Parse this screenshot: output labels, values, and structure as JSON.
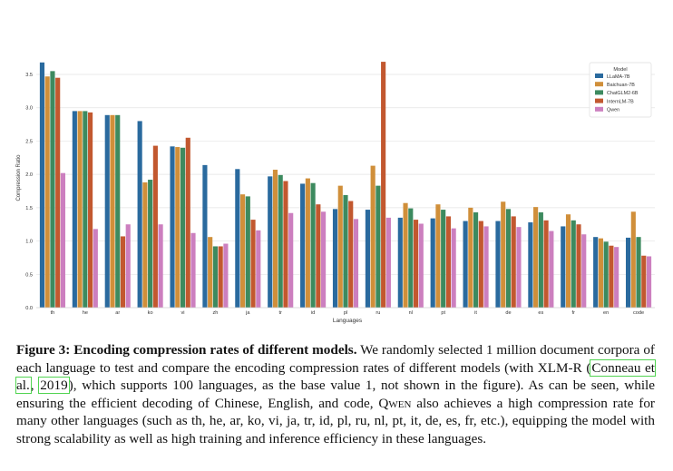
{
  "chart_data": {
    "type": "bar",
    "title": "",
    "xlabel": "Languages",
    "ylabel": "Compression Ratio",
    "ylim": [
      0.0,
      3.8
    ],
    "yticks": [
      "0.0",
      "0.5",
      "1.0",
      "1.5",
      "2.0",
      "2.5",
      "3.0",
      "3.5"
    ],
    "grid": true,
    "legend": {
      "title": "Model",
      "placement": "top-right"
    },
    "categories": [
      "th",
      "he",
      "ar",
      "ko",
      "vi",
      "zh",
      "ja",
      "tr",
      "id",
      "pl",
      "ru",
      "nl",
      "pt",
      "it",
      "de",
      "es",
      "fr",
      "en",
      "code"
    ],
    "series": [
      {
        "name": "LLaMA-7B",
        "color": "#2a6a9e",
        "values": [
          3.68,
          2.95,
          2.89,
          2.8,
          2.42,
          2.14,
          2.08,
          1.97,
          1.86,
          1.48,
          1.47,
          1.35,
          1.34,
          1.3,
          1.3,
          1.28,
          1.22,
          1.06,
          1.05
        ]
      },
      {
        "name": "Baichuan-7B",
        "color": "#d08f3a",
        "values": [
          3.47,
          2.95,
          2.89,
          1.88,
          2.41,
          1.06,
          1.7,
          2.07,
          1.94,
          1.83,
          2.13,
          1.57,
          1.55,
          1.5,
          1.59,
          1.51,
          1.4,
          1.04,
          1.44
        ]
      },
      {
        "name": "ChatGLM2-6B",
        "color": "#3d8a5f",
        "values": [
          3.55,
          2.95,
          2.89,
          1.92,
          2.4,
          0.92,
          1.67,
          1.99,
          1.87,
          1.69,
          1.83,
          1.49,
          1.47,
          1.43,
          1.48,
          1.43,
          1.31,
          0.99,
          1.06
        ]
      },
      {
        "name": "InternLM-7B",
        "color": "#c2582f",
        "values": [
          3.45,
          2.93,
          1.07,
          2.43,
          2.55,
          0.92,
          1.32,
          1.9,
          1.55,
          1.6,
          3.69,
          1.32,
          1.37,
          1.3,
          1.37,
          1.31,
          1.25,
          0.93,
          0.78
        ]
      },
      {
        "name": "Qwen",
        "color": "#cc7fbf",
        "values": [
          2.02,
          1.18,
          1.25,
          1.25,
          1.12,
          0.96,
          1.16,
          1.42,
          1.44,
          1.33,
          1.35,
          1.26,
          1.19,
          1.22,
          1.21,
          1.15,
          1.1,
          0.91,
          0.77
        ]
      }
    ]
  },
  "caption": {
    "lead": "Figure 3: Encoding compression rates of different models.",
    "text1": " We randomly selected 1 million document corpora of each language to test and compare the encoding compression rates of different models (with XLM-R (",
    "cite_author": "Conneau et al.",
    "cite_sep": ", ",
    "cite_year": "2019",
    "text2": "), which supports 100 languages, as the base value 1, not shown in the figure). As can be seen, while ensuring the efficient decoding of Chinese, English, and code, ",
    "qwen": "Qwen",
    "text3": " also achieves a high compression rate for many other languages (such as th, he, ar, ko, vi, ja, tr, id, pl, ru, nl, pt, it, de, es, fr, etc.), equipping the model with strong scalability as well as high training and inference efficiency in these languages."
  }
}
